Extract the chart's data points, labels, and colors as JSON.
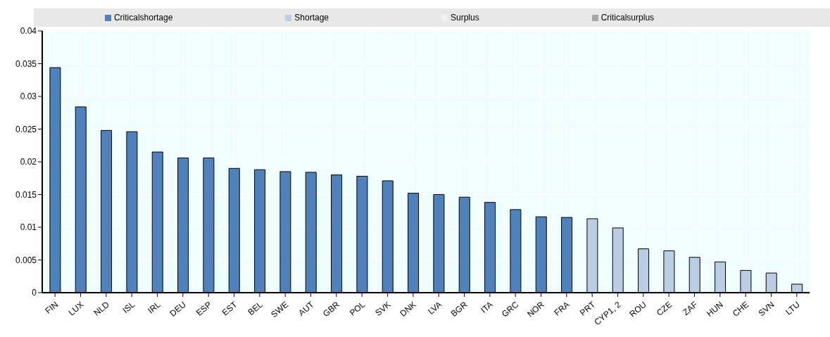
{
  "chart_data": {
    "type": "bar",
    "stacked": true,
    "categories": [
      "FIN",
      "LUX",
      "NLD",
      "ISL",
      "IRL",
      "DEU",
      "ESP",
      "EST",
      "BEL",
      "SWE",
      "AUT",
      "GBR",
      "POL",
      "SVK",
      "DNK",
      "LVA",
      "BGR",
      "ITA",
      "GRC",
      "NOR",
      "FRA",
      "PRT",
      "CYP1, 2",
      "ROU",
      "CZE",
      "ZAF",
      "HUN",
      "CHE",
      "SVN",
      "LTU"
    ],
    "series": [
      {
        "name": "Criticalshortage",
        "color": "#4f81bd",
        "values": [
          0.0344,
          0.0284,
          0.0248,
          0.0246,
          0.0215,
          0.0206,
          0.0206,
          0.019,
          0.0188,
          0.0185,
          0.0184,
          0.018,
          0.0178,
          0.0171,
          0.0152,
          0.015,
          0.0146,
          0.0138,
          0.0127,
          0.0116,
          0.0115,
          null,
          null,
          null,
          null,
          null,
          null,
          null,
          null,
          null
        ]
      },
      {
        "name": "Shortage",
        "color": "#b9cde5",
        "values": [
          null,
          null,
          null,
          null,
          null,
          null,
          null,
          null,
          null,
          null,
          null,
          null,
          null,
          null,
          null,
          null,
          null,
          null,
          null,
          null,
          null,
          0.0113,
          0.0099,
          0.0067,
          0.0064,
          0.0054,
          0.0047,
          0.0034,
          0.003,
          0.0013
        ]
      },
      {
        "name": "Surplus",
        "color": "#f2f2f2",
        "values": [
          null,
          null,
          null,
          null,
          null,
          null,
          null,
          null,
          null,
          null,
          null,
          null,
          null,
          null,
          null,
          null,
          null,
          null,
          null,
          null,
          null,
          null,
          null,
          null,
          null,
          null,
          null,
          null,
          null,
          null
        ]
      },
      {
        "name": "Criticalsurplus",
        "color": "#a6a6a6",
        "values": [
          null,
          null,
          null,
          null,
          null,
          null,
          null,
          null,
          null,
          null,
          null,
          null,
          null,
          null,
          null,
          null,
          null,
          null,
          null,
          null,
          null,
          null,
          null,
          null,
          null,
          null,
          null,
          null,
          null,
          null
        ]
      }
    ],
    "ylim": [
      0,
      0.04
    ],
    "yticks": [
      0,
      0.005,
      0.01,
      0.015,
      0.02,
      0.025,
      0.03,
      0.035,
      0.04
    ],
    "grid": true,
    "legend": "top"
  }
}
